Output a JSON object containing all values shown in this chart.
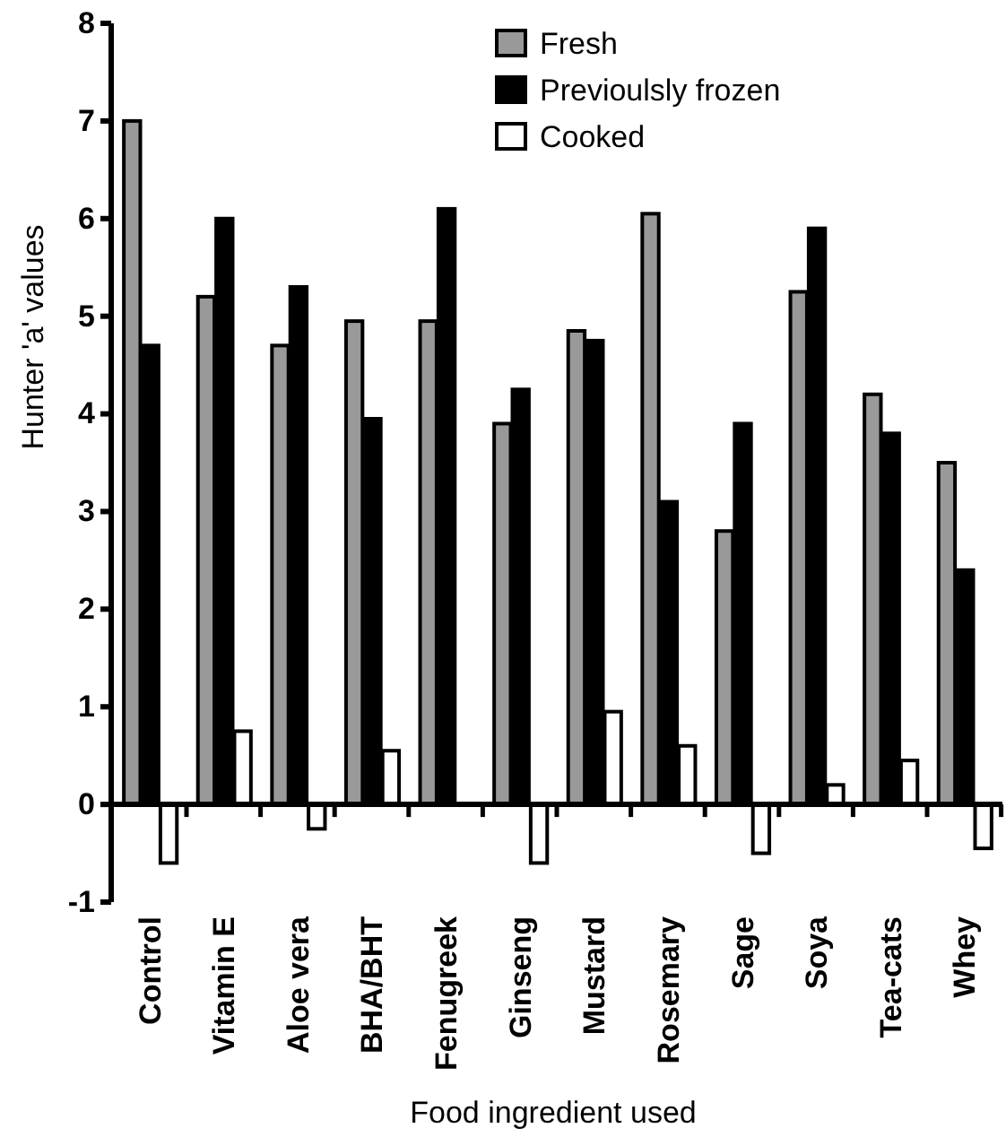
{
  "chart_data": {
    "type": "bar",
    "xlabel": "Food ingredient used",
    "ylabel": "Hunter 'a' values",
    "categories": [
      "Control",
      "Vitamin E",
      "Aloe vera",
      "BHA/BHT",
      "Fenugreek",
      "Ginseng",
      "Mustard",
      "Rosemary",
      "Sage",
      "Soya",
      "Tea-cats",
      "Whey"
    ],
    "series": [
      {
        "name": "Fresh",
        "color": "#999999",
        "values": [
          7.0,
          5.2,
          4.7,
          4.95,
          4.95,
          3.9,
          4.85,
          6.05,
          2.8,
          5.25,
          4.2,
          3.5
        ]
      },
      {
        "name": "Previoulsly frozen",
        "color": "#000000",
        "values": [
          4.7,
          6.0,
          5.3,
          3.95,
          6.1,
          4.25,
          4.75,
          3.1,
          3.9,
          5.9,
          3.8,
          2.4
        ]
      },
      {
        "name": "Cooked",
        "color": "#ffffff",
        "values": [
          -0.6,
          0.75,
          -0.25,
          0.55,
          null,
          -0.6,
          0.95,
          0.6,
          -0.5,
          0.2,
          0.45,
          -0.45
        ]
      }
    ],
    "ylim": [
      -1,
      8
    ],
    "yticks": [
      -1,
      0,
      1,
      2,
      3,
      4,
      5,
      6,
      7,
      8
    ],
    "legend": "top right"
  }
}
